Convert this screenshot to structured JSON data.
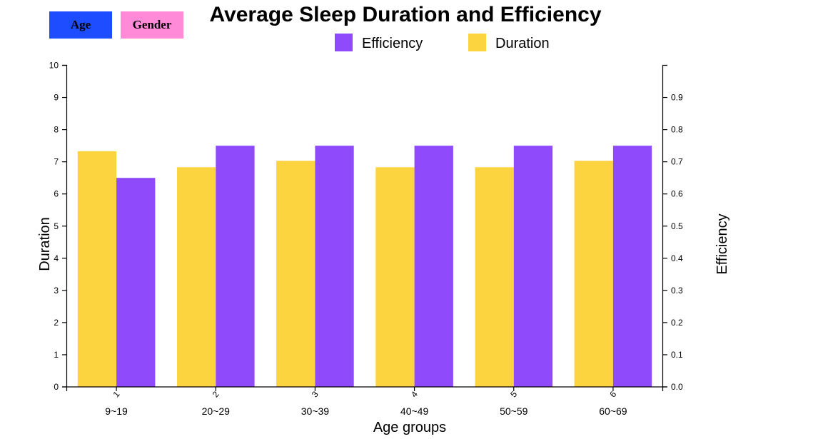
{
  "buttons": {
    "age_label": "Age",
    "gender_label": "Gender",
    "age_color": "#1e4dff",
    "gender_color": "#ff8ad8"
  },
  "chart_data": {
    "type": "bar",
    "title": "Average Sleep Duration and Efficiency",
    "xlabel": "Age groups",
    "ylabel": "Duration",
    "y2label": "Efficiency",
    "ylim": [
      0,
      10
    ],
    "y2lim": [
      0,
      1.0
    ],
    "categories": [
      "9~19",
      "20~29",
      "30~39",
      "40~49",
      "50~59",
      "60~69"
    ],
    "category_numbers": [
      "1",
      "2",
      "3",
      "4",
      "5",
      "6"
    ],
    "y_ticks": [
      "0",
      "1",
      "2",
      "3",
      "4",
      "5",
      "6",
      "7",
      "8",
      "9",
      "10"
    ],
    "y2_ticks": [
      "0.0",
      "0.1",
      "0.2",
      "0.3",
      "0.4",
      "0.5",
      "0.6",
      "0.7",
      "0.8",
      "0.9"
    ],
    "series": [
      {
        "name": "Duration",
        "axis": "left",
        "color": "#fcd43f",
        "values": [
          7.33,
          6.83,
          7.03,
          6.83,
          6.83,
          7.03
        ]
      },
      {
        "name": "Efficiency",
        "axis": "right",
        "color": "#8f4bfb",
        "values": [
          0.65,
          0.75,
          0.75,
          0.75,
          0.75,
          0.75
        ]
      }
    ],
    "legend": [
      {
        "name": "Efficiency",
        "color": "#8f4bfb"
      },
      {
        "name": "Duration",
        "color": "#fcd43f"
      }
    ],
    "legend_position": "top-center",
    "grid": false
  }
}
